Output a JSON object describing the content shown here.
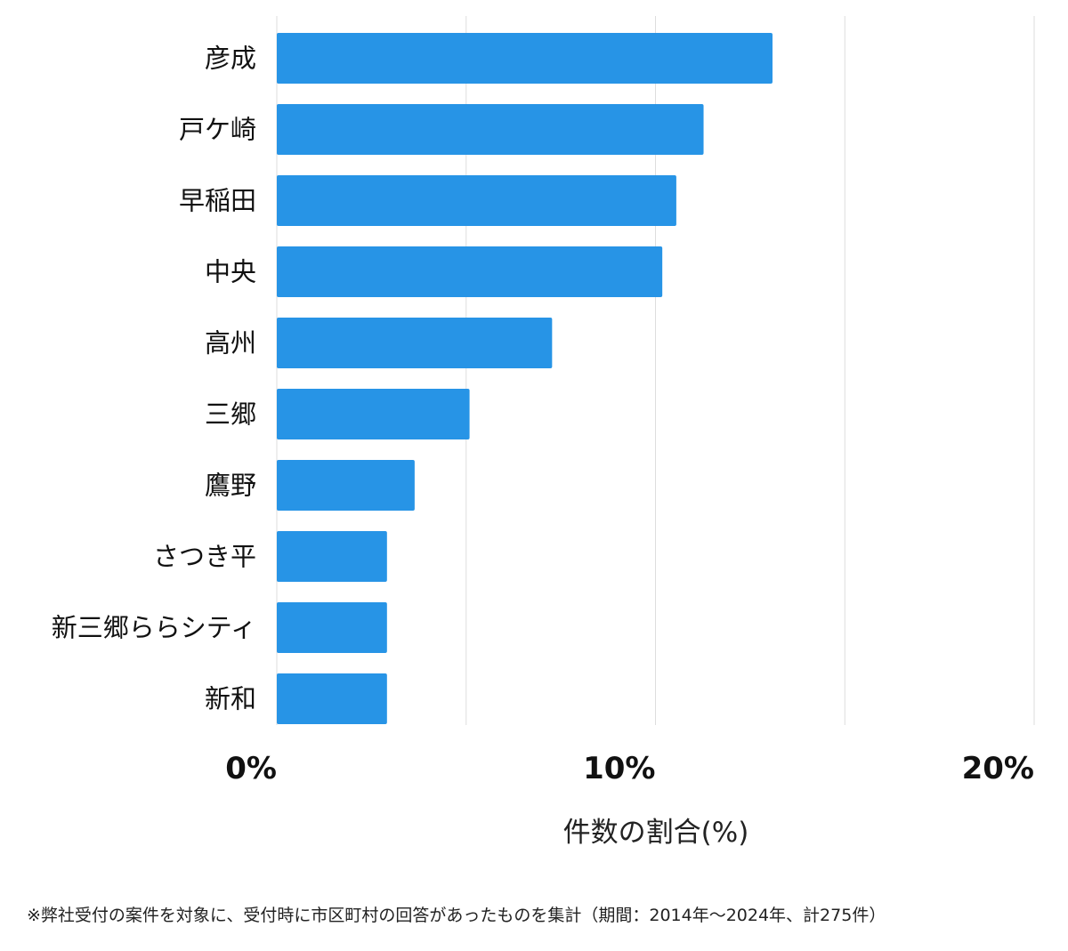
{
  "chart_data": {
    "type": "bar",
    "orientation": "horizontal",
    "categories": [
      "彦成",
      "戸ケ崎",
      "早稲田",
      "中央",
      "高州",
      "三郷",
      "鷹野",
      "さつき平",
      "新三郷ららシティ",
      "新和"
    ],
    "values": [
      13.09,
      11.27,
      10.55,
      10.18,
      7.27,
      5.09,
      3.64,
      2.91,
      2.91,
      2.91
    ],
    "xlabel": "件数の割合(%)",
    "xlim": [
      0,
      20
    ],
    "xticks": [
      0,
      10,
      20
    ],
    "xtick_labels": [
      "0%",
      "10%",
      "20%"
    ],
    "grid": true,
    "bar_color": "#2794e6"
  },
  "footnote": "※弊社受付の案件を対象に、受付時に市区町村の回答があったものを集計（期間：2014年〜2024年、計275件）"
}
